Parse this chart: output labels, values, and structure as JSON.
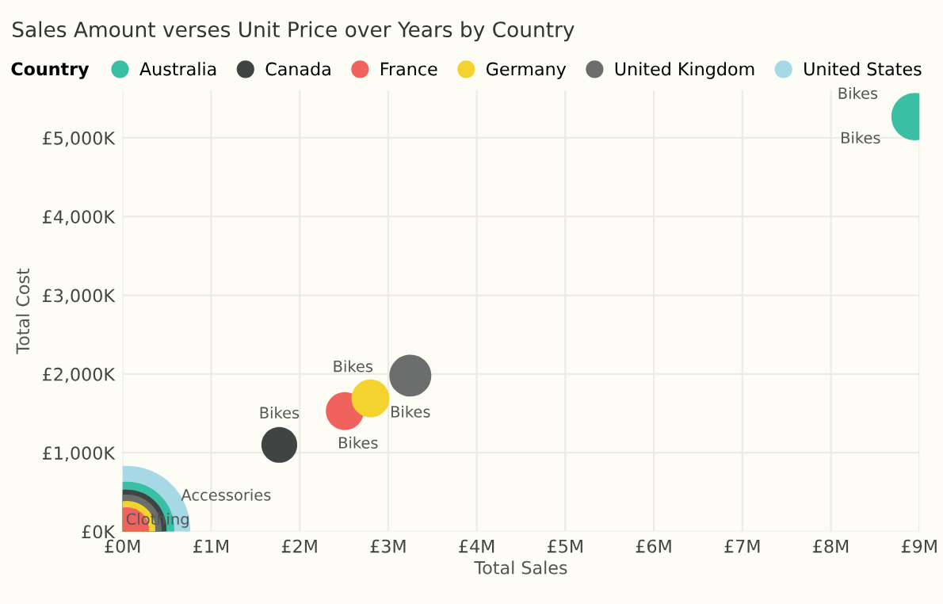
{
  "chart_data": {
    "type": "bubble",
    "title": "Sales Amount verses Unit Price over Years by Country",
    "xlabel": "Total Sales",
    "ylabel": "Total Cost",
    "legend_title": "Country",
    "series": [
      {
        "name": "Australia",
        "color": "#3bbfa4",
        "x": [
          8.95,
          0.05
        ],
        "values": [
          5270,
          30
        ],
        "sizes": [
          0.14,
          0.56
        ]
      },
      {
        "name": "Canada",
        "color": "#3e4542",
        "x": [
          1.77,
          0.05
        ],
        "values": [
          1100,
          30
        ],
        "sizes": [
          0.08,
          0.39
        ]
      },
      {
        "name": "France",
        "color": "#f0625e",
        "x": [
          2.51,
          0.05
        ],
        "values": [
          1530,
          30
        ],
        "sizes": [
          0.09,
          0.12
        ]
      },
      {
        "name": "Germany",
        "color": "#f5d32f",
        "x": [
          2.8,
          0.05
        ],
        "values": [
          1690,
          30
        ],
        "sizes": [
          0.09,
          0.2
        ]
      },
      {
        "name": "United Kingdom",
        "color": "#6b6e6c",
        "x": [
          3.25,
          0.05
        ],
        "values": [
          1980,
          30
        ],
        "sizes": [
          0.11,
          0.3
        ]
      },
      {
        "name": "United States",
        "color": "#a6d8e6",
        "x": [
          0.05
        ],
        "values": [
          30
        ],
        "sizes": [
          1
        ]
      }
    ],
    "annotations": [
      {
        "text": "Bikes",
        "x": 8.95,
        "y": 5270
      },
      "Bikes",
      {
        "text": "Bikes",
        "x": 1.77,
        "y": 1100
      },
      {
        "text": "Bikes",
        "x": 2.8,
        "y": 1690
      },
      {
        "text": "Bikes",
        "x": 2.51,
        "y": 1530
      },
      {
        "text": "Bikes",
        "x": 3.25,
        "y": 1980
      },
      "Accessories",
      {
        "text": "Clothing",
        "x": 0.05,
        "y": 30
      }
    ],
    "xlim": [
      0,
      9
    ],
    "ylim": [
      0,
      5600
    ],
    "xticks": [
      {
        "value": 0,
        "label": "£0M"
      },
      {
        "value": 1,
        "label": "£1M"
      },
      {
        "value": 2,
        "label": "£2M"
      },
      {
        "value": 3,
        "label": "£3M"
      },
      {
        "value": 4,
        "label": "£4M"
      },
      {
        "value": 5,
        "label": "£5M"
      },
      {
        "value": 6,
        "label": "£6M"
      },
      {
        "value": 7,
        "label": "£7M"
      },
      {
        "value": 8,
        "label": "£8M"
      },
      {
        "value": 9,
        "label": "£9M"
      }
    ],
    "yticks": [
      {
        "value": 0,
        "label": "£0K"
      },
      {
        "value": 1000,
        "label": "£1,000K"
      },
      {
        "value": 2000,
        "label": "£2,000K"
      },
      {
        "value": 3000,
        "label": "£3,000K"
      },
      {
        "value": 4000,
        "label": "£4,000K"
      },
      {
        "value": 5000,
        "label": "£5,000K"
      }
    ],
    "grid": true,
    "legend": "top left"
  }
}
